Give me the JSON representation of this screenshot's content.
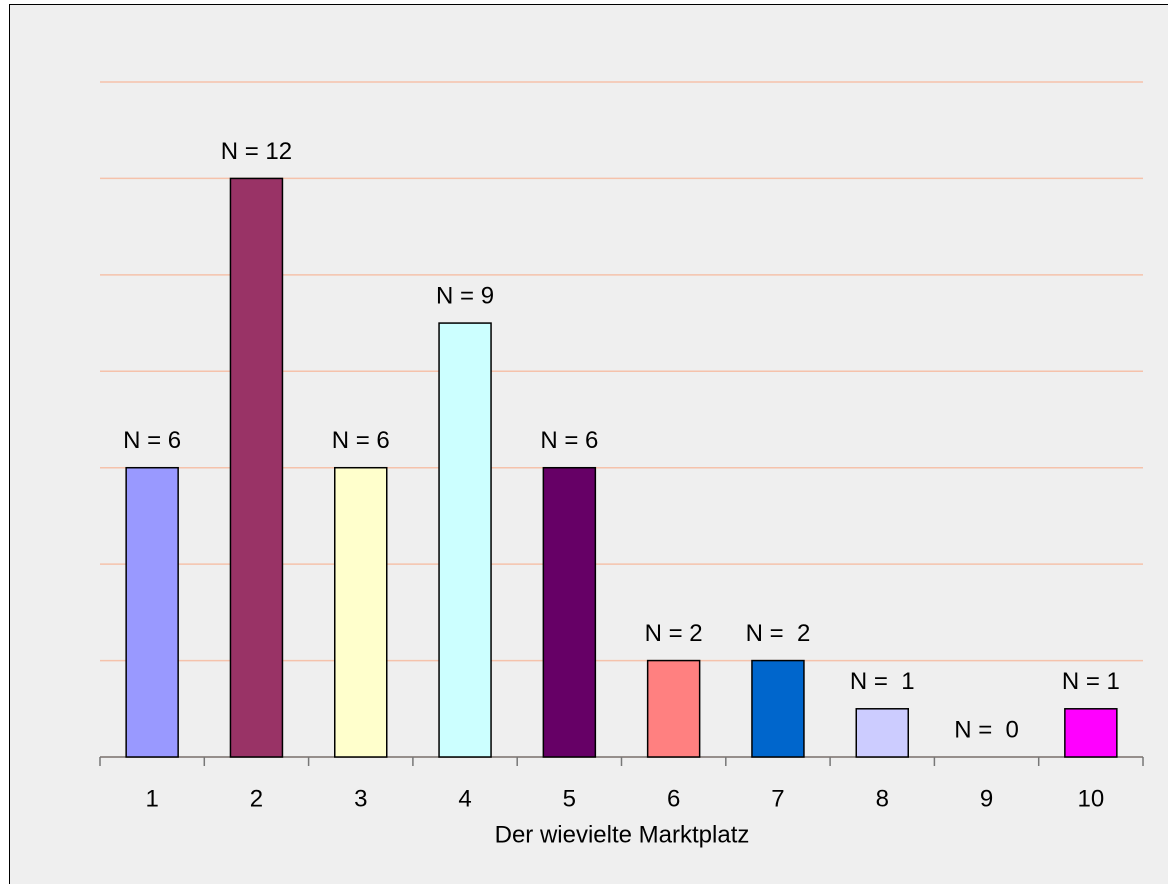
{
  "chart_data": {
    "type": "bar",
    "x_label": "Der wievielte Marktplatz",
    "categories": [
      "1",
      "2",
      "3",
      "4",
      "5",
      "6",
      "7",
      "8",
      "9",
      "10"
    ],
    "values": [
      6,
      12,
      6,
      9,
      6,
      2,
      2,
      1,
      0,
      1
    ],
    "value_labels": [
      "N = 6",
      "N = 12",
      "N = 6",
      "N = 9",
      "N = 6",
      "N = 2",
      "N =  2",
      "N =  1",
      "N =  0",
      "N = 1"
    ],
    "colors": [
      "#9999ff",
      "#993366",
      "#ffffcc",
      "#ccffff",
      "#660066",
      "#ff8080",
      "#0066cc",
      "#ccccff",
      "#000080",
      "#ff00ff"
    ],
    "ylim": [
      0,
      14
    ],
    "yticks": [
      0,
      2,
      4,
      6,
      8,
      10,
      12,
      14
    ],
    "grid": true
  }
}
